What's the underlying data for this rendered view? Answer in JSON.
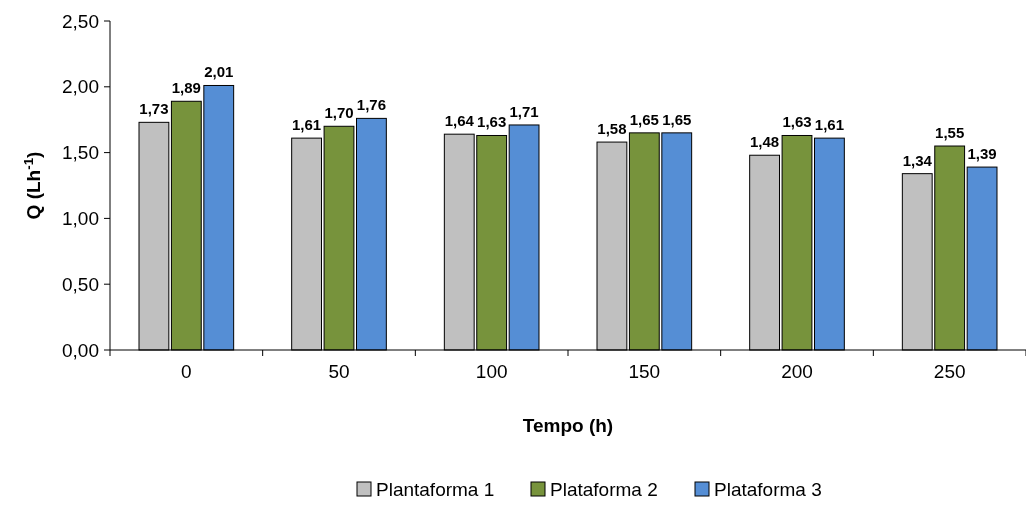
{
  "chart_data": {
    "type": "bar",
    "xlabel": "Tempo (h)",
    "ylabel": "Q (Lh$^{-1}$)",
    "categories": [
      "0",
      "50",
      "100",
      "150",
      "200",
      "250"
    ],
    "series": [
      {
        "name": "Plantaforma 1",
        "color": "#c0c0c0",
        "values": [
          1.73,
          1.61,
          1.64,
          1.58,
          1.48,
          1.34
        ],
        "value_labels": [
          "1,73",
          "1,61",
          "1,64",
          "1,58",
          "1,48",
          "1,34"
        ]
      },
      {
        "name": "Plataforma 2",
        "color": "#77933c",
        "values": [
          1.89,
          1.7,
          1.63,
          1.65,
          1.63,
          1.55
        ],
        "value_labels": [
          "1,89",
          "1,70",
          "1,63",
          "1,65",
          "1,63",
          "1,55"
        ]
      },
      {
        "name": "Plataforma 3",
        "color": "#558ed5",
        "values": [
          2.01,
          1.76,
          1.71,
          1.65,
          1.61,
          1.39
        ],
        "value_labels": [
          "2,01",
          "1,76",
          "1,71",
          "1,65",
          "1,61",
          "1,39"
        ]
      }
    ],
    "ylim": [
      0,
      2.5
    ],
    "yticks": [
      {
        "value": 0,
        "label": "0,00"
      },
      {
        "value": 0.5,
        "label": "0,50"
      },
      {
        "value": 1,
        "label": "1,00"
      },
      {
        "value": 1.5,
        "label": "1,50"
      },
      {
        "value": 2,
        "label": "2,00"
      },
      {
        "value": 2.5,
        "label": "2,50"
      }
    ],
    "grid": false,
    "legend": "bottom"
  }
}
